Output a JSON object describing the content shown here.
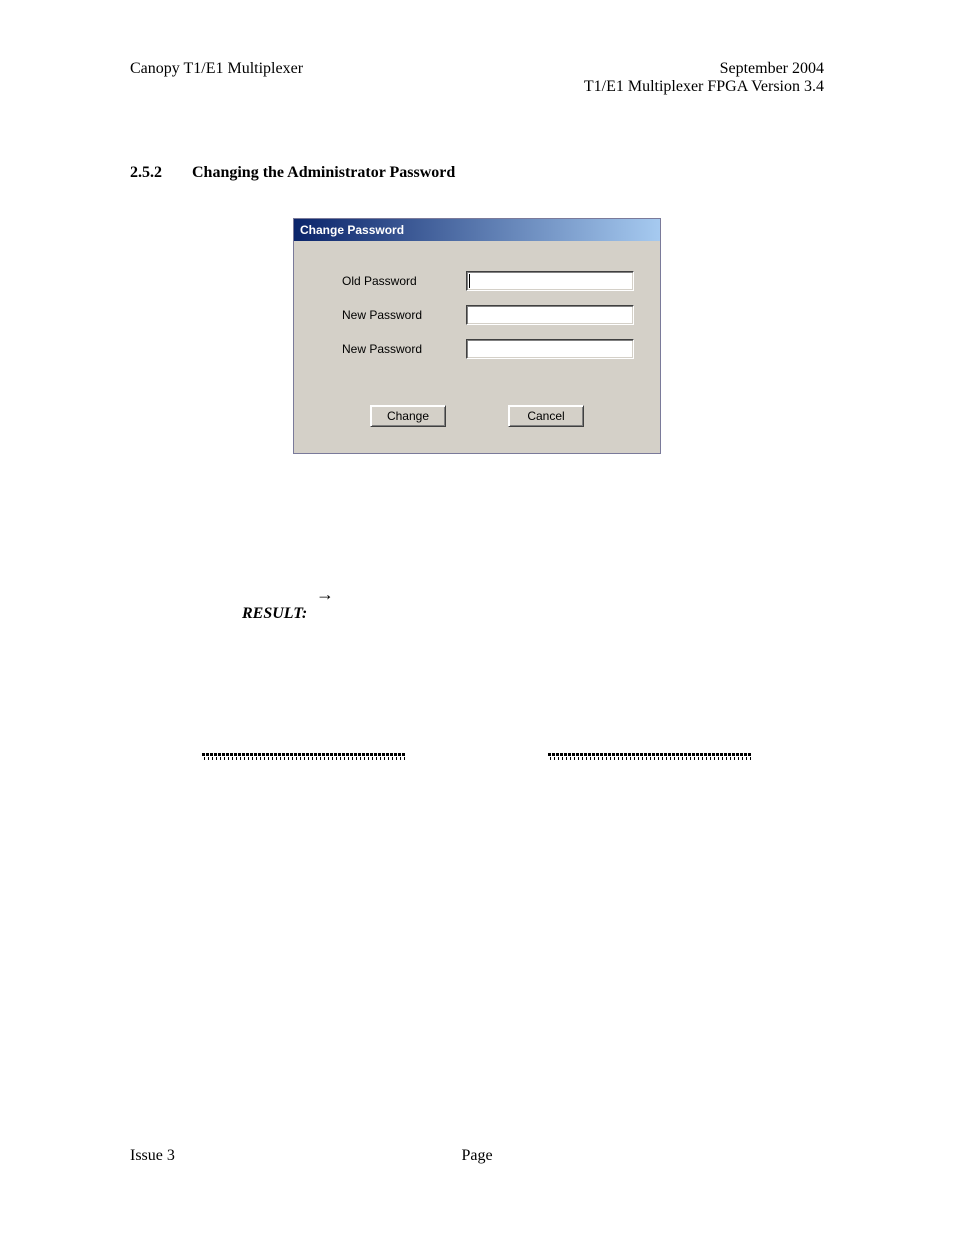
{
  "header": {
    "left": "Canopy T1/E1 Multiplexer",
    "right_top": "September 2004",
    "right_sub": "T1/E1 Multiplexer FPGA Version 3.4"
  },
  "section": {
    "number": "2.5.2",
    "title": "Changing the Administrator Password"
  },
  "dialog": {
    "title": "Change Password",
    "fields": {
      "old_label": "Old Password",
      "new1_label": "New Password",
      "new2_label": "New Password",
      "old_value": "",
      "new1_value": "",
      "new2_value": ""
    },
    "buttons": {
      "change": "Change",
      "cancel": "Cancel"
    }
  },
  "result": {
    "arrow": "→",
    "label": "RESULT:"
  },
  "footer": {
    "left": "Issue 3",
    "center": "Page"
  },
  "colors": {
    "titlebar_start": "#0a246a",
    "titlebar_end": "#a6caf0",
    "dialog_bg": "#d4d0c8",
    "input_bg": "#ffffff",
    "text": "#000000"
  }
}
